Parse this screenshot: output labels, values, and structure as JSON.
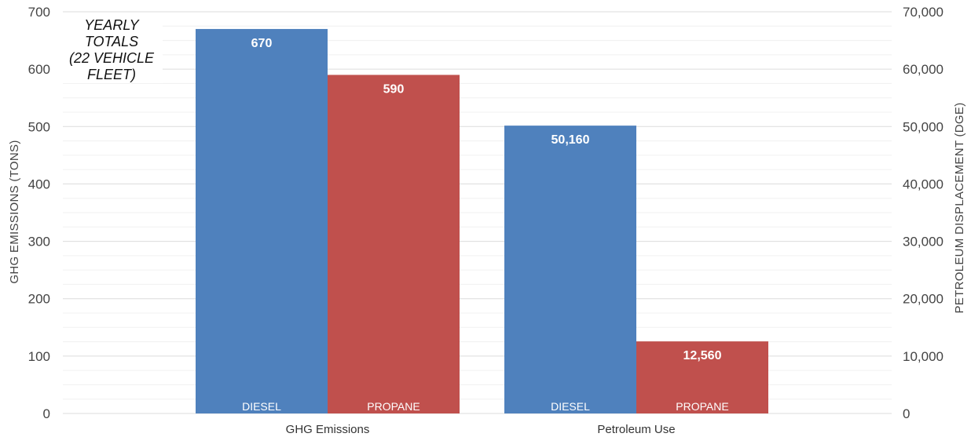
{
  "chart_data": {
    "type": "bar",
    "categories": [
      "GHG Emissions",
      "Petroleum Use"
    ],
    "ylabel": "GHG EMISSIONS (TONS)",
    "y2label": "PETROLEUM DISPLACEMENT (DGE)",
    "ylim": [
      0,
      700
    ],
    "y2lim": [
      0,
      70000
    ],
    "yticks": [
      "0",
      "100",
      "200",
      "300",
      "400",
      "500",
      "600",
      "700"
    ],
    "y2ticks": [
      "0",
      "10,000",
      "20,000",
      "30,000",
      "40,000",
      "50,000",
      "60,000",
      "70,000"
    ],
    "note": [
      "YEARLY",
      "TOTALS",
      "(22 VEHICLE",
      "FLEET)"
    ],
    "grid": true,
    "bars": [
      {
        "category": "GHG Emissions",
        "series": "DIESEL",
        "axis": "left",
        "value": 670,
        "label": "670",
        "color": "#4f81bd"
      },
      {
        "category": "GHG Emissions",
        "series": "PROPANE",
        "axis": "left",
        "value": 590,
        "label": "590",
        "color": "#c0504d"
      },
      {
        "category": "Petroleum Use",
        "series": "DIESEL",
        "axis": "right",
        "value": 50160,
        "label": "50,160",
        "color": "#4f81bd"
      },
      {
        "category": "Petroleum Use",
        "series": "PROPANE",
        "axis": "right",
        "value": 12560,
        "label": "12,560",
        "color": "#c0504d"
      }
    ]
  }
}
